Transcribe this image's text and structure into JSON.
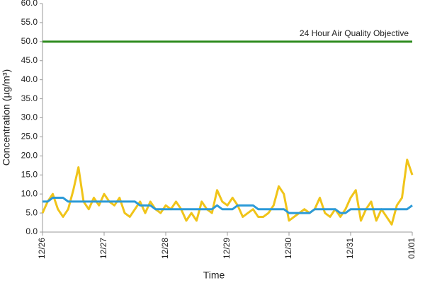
{
  "chart_data": {
    "type": "line",
    "xlabel": "Time",
    "ylabel": "Concentration (µg/m³)",
    "x": [
      0,
      2,
      4,
      6,
      8,
      10,
      12,
      14,
      16,
      18,
      20,
      22,
      24,
      26,
      28,
      30,
      32,
      34,
      36,
      38,
      40,
      42,
      44,
      46,
      48,
      50,
      52,
      54,
      56,
      58,
      60,
      62,
      64,
      66,
      68,
      70,
      72,
      74,
      76,
      78,
      80,
      82,
      84,
      86,
      88,
      90,
      92,
      94,
      96,
      98,
      100,
      102,
      104,
      106,
      108,
      110,
      112,
      114,
      116,
      118,
      120,
      122,
      124,
      126,
      128,
      130,
      132,
      134,
      136,
      138,
      140,
      142,
      144
    ],
    "series": [
      {
        "color": "#f0c419",
        "values": [
          5,
          8,
          10,
          6,
          4,
          6,
          11,
          17,
          8,
          6,
          9,
          7,
          10,
          8,
          7,
          9,
          5,
          4,
          6,
          8,
          5,
          8,
          6,
          5,
          7,
          6,
          8,
          6,
          3,
          5,
          3,
          8,
          6,
          5,
          11,
          8,
          7,
          9,
          7,
          4,
          5,
          6,
          4,
          4,
          5,
          7,
          12,
          10,
          3,
          4,
          5,
          6,
          5,
          6,
          9,
          5,
          4,
          6,
          4,
          6,
          9,
          11,
          3,
          6,
          8,
          3,
          6,
          4,
          2,
          7,
          9,
          19,
          15
        ]
      },
      {
        "color": "#2b9ad8",
        "values": [
          8,
          8,
          9,
          9,
          9,
          8,
          8,
          8,
          8,
          8,
          8,
          8,
          8,
          8,
          8,
          8,
          8,
          8,
          8,
          7,
          7,
          7,
          6,
          6,
          6,
          6,
          6,
          6,
          6,
          6,
          6,
          6,
          6,
          6,
          7,
          6,
          6,
          6,
          7,
          7,
          7,
          7,
          6,
          6,
          6,
          6,
          6,
          6,
          5,
          5,
          5,
          5,
          5,
          6,
          6,
          6,
          6,
          6,
          5,
          5,
          6,
          6,
          6,
          6,
          6,
          6,
          6,
          6,
          6,
          6,
          6,
          6,
          7
        ]
      }
    ],
    "reference": {
      "value": 50,
      "label": "24 Hour Air Quality Objective",
      "color": "#2e8b1e"
    },
    "xlim": [
      0,
      144
    ],
    "xticks": [
      {
        "value": 0,
        "label": "12/26"
      },
      {
        "value": 24,
        "label": "12/27"
      },
      {
        "value": 48,
        "label": "12/28"
      },
      {
        "value": 72,
        "label": "12/29"
      },
      {
        "value": 96,
        "label": "12/30"
      },
      {
        "value": 120,
        "label": "12/31"
      },
      {
        "value": 144,
        "label": "01/01"
      }
    ],
    "ylim": [
      0,
      60
    ],
    "yticks": [
      {
        "value": 0,
        "label": "0.0"
      },
      {
        "value": 5,
        "label": "5.0"
      },
      {
        "value": 10,
        "label": "10.0"
      },
      {
        "value": 15,
        "label": "15.0"
      },
      {
        "value": 20,
        "label": "20.0"
      },
      {
        "value": 25,
        "label": "25.0"
      },
      {
        "value": 30,
        "label": "30.0"
      },
      {
        "value": 35,
        "label": "35.0"
      },
      {
        "value": 40,
        "label": "40.0"
      },
      {
        "value": 45,
        "label": "45.0"
      },
      {
        "value": 50,
        "label": "50.0"
      },
      {
        "value": 55,
        "label": "55.0"
      },
      {
        "value": 60,
        "label": "60.0"
      }
    ],
    "grid": false
  }
}
